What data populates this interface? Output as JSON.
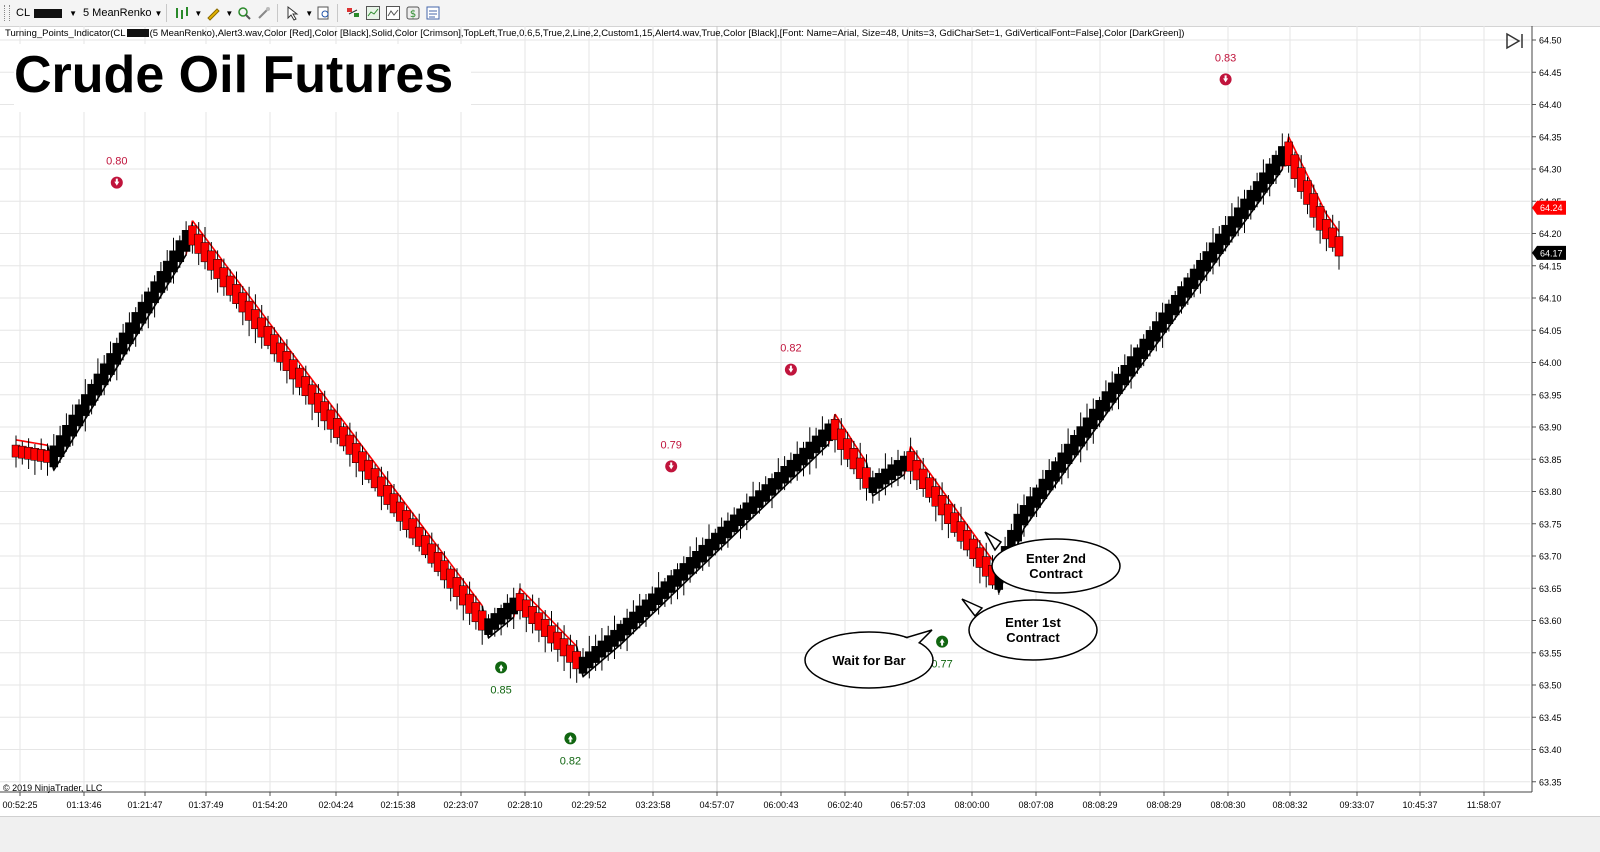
{
  "toolbar": {
    "instrument": "CL",
    "bar_type": "5 MeanRenko",
    "icons": [
      "bar-style-icon",
      "pencil-draw-icon",
      "zoom-in-icon",
      "crosshair-icon",
      "pointer-icon",
      "find-icon",
      "strategy-icon",
      "indicator-icon",
      "chart-trader-icon",
      "dollar-icon",
      "properties-icon"
    ]
  },
  "indicator_label_start": "Turning_Points_Indicator(CL",
  "indicator_label_end": "(5 MeanRenko),Alert3.wav,Color [Red],Color [Black],Solid,Color [Crimson],TopLeft,True,0.6,5,True,2,Line,2,Custom1,15,Alert4.wav,True,Color [Black],[Font: Name=Arial, Size=48, Units=3, GdiCharSet=1, GdiVerticalFont=False],Color [DarkGreen])",
  "title": "Crude Oil Futures",
  "copyright": "© 2019 NinjaTrader, LLC",
  "colors": {
    "up": "#000000",
    "down": "#ff0000",
    "top_marker": "#c0143c",
    "bottom_marker": "#116611",
    "grid": "#e6e6e6"
  },
  "chart_data": {
    "type": "candlestick",
    "title": "Crude Oil Futures",
    "ylim": [
      63.33,
      64.51
    ],
    "y_ticks": [
      "64.50",
      "64.45",
      "64.40",
      "64.35",
      "64.30",
      "64.25",
      "64.20",
      "64.15",
      "64.10",
      "64.05",
      "64.00",
      "63.95",
      "63.90",
      "63.85",
      "63.80",
      "63.75",
      "63.70",
      "63.65",
      "63.60",
      "63.55",
      "63.50",
      "63.45",
      "63.40",
      "63.35"
    ],
    "x_labels": [
      "00:52:25",
      "01:13:46",
      "01:21:47",
      "01:37:49",
      "01:54:20",
      "02:04:24",
      "02:15:38",
      "02:23:07",
      "02:28:10",
      "02:29:52",
      "03:23:58",
      "04:57:07",
      "06:00:43",
      "06:02:40",
      "06:57:03",
      "08:00:00",
      "08:07:08",
      "08:08:29",
      "08:08:29",
      "08:08:30",
      "08:08:32",
      "09:33:07",
      "10:45:37",
      "11:58:07"
    ],
    "price_badges": [
      {
        "value": "64.24",
        "color": "#ff0000"
      },
      {
        "value": "64.17",
        "color": "#000000"
      }
    ],
    "turning_points": [
      {
        "type": "top",
        "label": "0.80",
        "bar": 16,
        "price": 64.22
      },
      {
        "type": "bottom",
        "label": "0.85",
        "bar": 77,
        "price": 63.58
      },
      {
        "type": "bottom",
        "label": "0.82",
        "bar": 88,
        "price": 63.47
      },
      {
        "type": "top",
        "label": "0.79",
        "bar": 104,
        "price": 63.78
      },
      {
        "type": "top",
        "label": "0.82",
        "bar": 123,
        "price": 63.93
      },
      {
        "type": "bottom",
        "label": "0.77",
        "bar": 147,
        "price": 63.62
      },
      {
        "type": "top",
        "label": "0.83",
        "bar": 192,
        "price": 64.38
      }
    ],
    "callouts": [
      "Wait for Bar",
      "Enter 1st Contract",
      "Enter 2nd Contract"
    ],
    "callout_lines": [
      [
        "Wait for Bar"
      ],
      [
        "Enter 1st",
        "Contract"
      ],
      [
        "Enter 2nd",
        "Contract"
      ]
    ],
    "legs": [
      [
        63.86,
        63.85
      ],
      [
        63.85,
        64.2
      ],
      [
        64.2,
        63.59
      ],
      [
        63.59,
        63.63
      ],
      [
        63.63,
        63.53
      ],
      [
        63.53,
        63.58
      ],
      [
        63.58,
        63.9
      ],
      [
        63.9,
        63.81
      ],
      [
        63.81,
        63.85
      ],
      [
        63.85,
        63.66
      ],
      [
        63.66,
        63.76
      ],
      [
        63.76,
        64.33
      ],
      [
        64.33,
        64.21
      ],
      [
        64.21,
        64.17
      ]
    ],
    "leg_bars": [
      6,
      22,
      47,
      5,
      10,
      6,
      34,
      6,
      6,
      14,
      4,
      42,
      6,
      3
    ]
  }
}
